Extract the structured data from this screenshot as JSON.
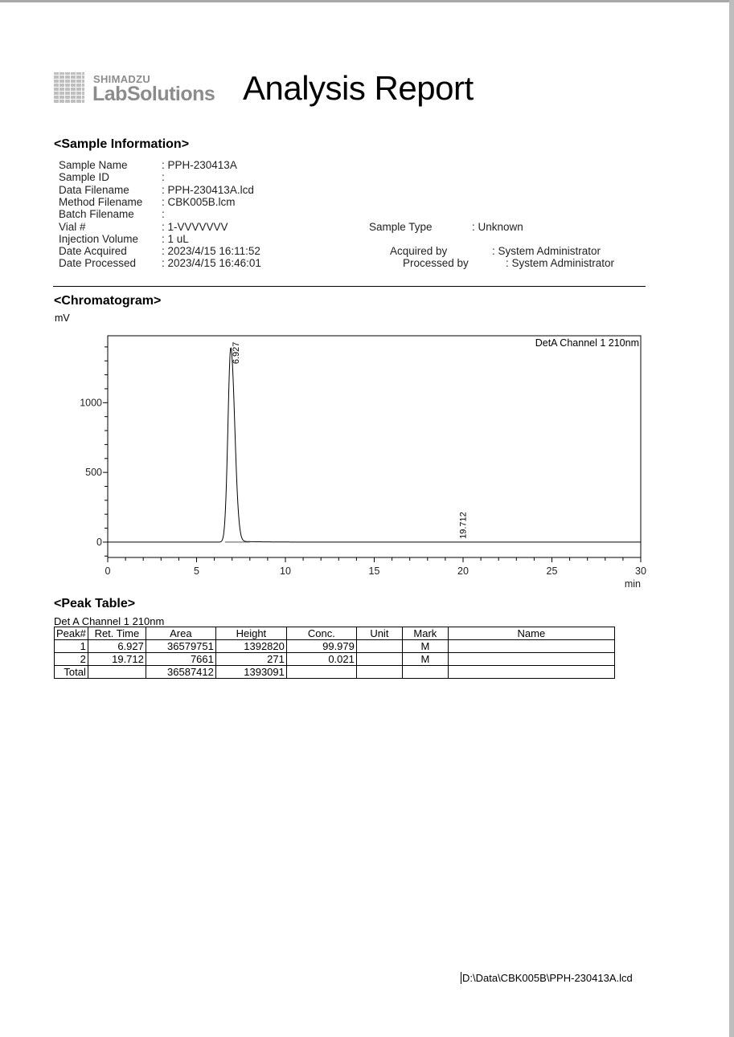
{
  "header": {
    "logo_brand": "SHIMADZU",
    "logo_product": "LabSolutions",
    "title": "Analysis Report"
  },
  "sample_information": {
    "heading": "<Sample Information>",
    "left": [
      {
        "label": "Sample Name",
        "value": "PPH-230413A"
      },
      {
        "label": "Sample ID",
        "value": ""
      },
      {
        "label": "Data Filename",
        "value": "PPH-230413A.lcd"
      },
      {
        "label": "Method Filename",
        "value": "CBK005B.lcm"
      },
      {
        "label": "Batch Filename",
        "value": ""
      },
      {
        "label": "Vial #",
        "value": "1-VVVVVVV"
      },
      {
        "label": "Injection Volume",
        "value": "1 uL"
      },
      {
        "label": "Date Acquired",
        "value": "2023/4/15 16:11:52"
      },
      {
        "label": "Date Processed",
        "value": "2023/4/15 16:46:01"
      }
    ],
    "right": [
      {
        "label": "Sample Type",
        "value": "Unknown"
      },
      {
        "label": "Acquired by",
        "value": "System Administrator"
      },
      {
        "label": "Processed by",
        "value": "System Administrator"
      }
    ]
  },
  "chromatogram": {
    "heading": "<Chromatogram>"
  },
  "chart_data": {
    "type": "line",
    "title": "",
    "legend": "Det.A Channel 1 210nm",
    "legend_text": "DetA Channel 1 210nm",
    "xlabel": "min",
    "ylabel": "mV",
    "xlim": [
      0,
      30
    ],
    "ylim": [
      -110,
      1480
    ],
    "x_ticks": [
      0,
      5,
      10,
      15,
      20,
      25,
      30
    ],
    "y_ticks": [
      0,
      500,
      1000
    ],
    "grid": false,
    "peaks": [
      {
        "rt": 6.927,
        "height_mV": 1392.82,
        "label": "6.927"
      },
      {
        "rt": 19.712,
        "height_mV": 0.271,
        "label": "19.712"
      }
    ],
    "color": "#000000"
  },
  "peak_table": {
    "heading": "<Peak Table>",
    "detector": "Det A Channel 1 210nm",
    "columns": [
      "Peak#",
      "Ret. Time",
      "Area",
      "Height",
      "Conc.",
      "Unit",
      "Mark",
      "Name"
    ],
    "rows": [
      [
        "1",
        "6.927",
        "36579751",
        "1392820",
        "99.979",
        "",
        "M",
        ""
      ],
      [
        "2",
        "19.712",
        "7661",
        "271",
        "0.021",
        "",
        "M",
        ""
      ]
    ],
    "total": [
      "Total",
      "",
      "36587412",
      "1393091",
      "",
      "",
      "",
      ""
    ]
  },
  "footer": {
    "path": "D:\\Data\\CBK005B\\PPH-230413A.lcd"
  }
}
